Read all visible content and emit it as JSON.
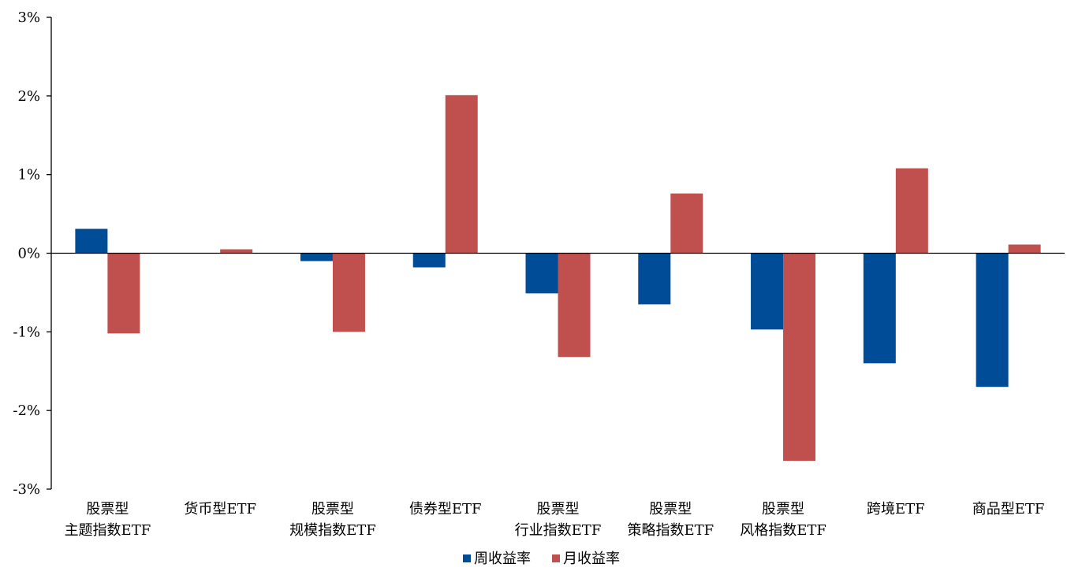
{
  "chart_data": {
    "type": "bar",
    "categories": [
      [
        "股票型",
        "主题指数ETF"
      ],
      [
        "货币型ETF"
      ],
      [
        "股票型",
        "规模指数ETF"
      ],
      [
        "债券型ETF"
      ],
      [
        "股票型",
        "行业指数ETF"
      ],
      [
        "股票型",
        "策略指数ETF"
      ],
      [
        "股票型",
        "风格指数ETF"
      ],
      [
        "跨境ETF"
      ],
      [
        "商品型ETF"
      ]
    ],
    "series": [
      {
        "name": "周收益率",
        "color": "#004c97",
        "values": [
          0.31,
          0.0,
          -0.1,
          -0.18,
          -0.51,
          -0.65,
          -0.97,
          -1.4,
          -1.7
        ]
      },
      {
        "name": "月收益率",
        "color": "#c0504d",
        "values": [
          -1.02,
          0.05,
          -1.0,
          2.01,
          -1.32,
          0.76,
          -2.64,
          1.08,
          0.11
        ]
      }
    ],
    "yticks": [
      "3%",
      "2%",
      "1%",
      "0%",
      "-1%",
      "-2%",
      "-3%"
    ],
    "ylim": [
      -3,
      3
    ],
    "title": "",
    "xlabel": "",
    "ylabel": "",
    "legend_position": "bottom-center",
    "grid": false
  }
}
